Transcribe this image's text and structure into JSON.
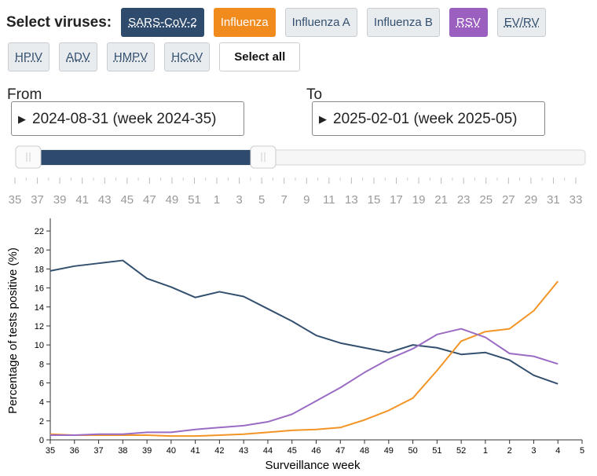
{
  "virus_selector": {
    "label": "Select viruses:",
    "buttons": [
      {
        "label": "SARS-CoV-2",
        "selected": true,
        "color": "#2e4a6d",
        "abbr": true
      },
      {
        "label": "Influenza",
        "selected": true,
        "color": "#f28b1e",
        "abbr": false
      },
      {
        "label": "Influenza A",
        "selected": false,
        "abbr": false
      },
      {
        "label": "Influenza B",
        "selected": false,
        "abbr": false
      },
      {
        "label": "RSV",
        "selected": true,
        "color": "#9b5fc0",
        "abbr": true
      },
      {
        "label": "EV/RV",
        "selected": false,
        "abbr": true
      },
      {
        "label": "HPIV",
        "selected": false,
        "abbr": true
      },
      {
        "label": "ADV",
        "selected": false,
        "abbr": true
      },
      {
        "label": "HMPV",
        "selected": false,
        "abbr": true
      },
      {
        "label": "HCoV",
        "selected": false,
        "abbr": true
      },
      {
        "label": "Select all",
        "selected": false,
        "abbr": false,
        "plain": true
      }
    ]
  },
  "range": {
    "from_label": "From",
    "from_value": "2024-08-31 (week 2024-35)",
    "to_label": "To",
    "to_value": "2025-02-01 (week 2025-05)",
    "slider_ticks": [
      "35",
      "37",
      "39",
      "41",
      "43",
      "45",
      "47",
      "49",
      "51",
      "1",
      "3",
      "5",
      "7",
      "9",
      "11",
      "13",
      "15",
      "17",
      "19",
      "21",
      "23",
      "25",
      "27",
      "29",
      "31",
      "33"
    ]
  },
  "chart_data": {
    "type": "line",
    "xlabel": "Surveillance week",
    "ylabel": "Percentage of tests positive (%)",
    "categories": [
      "35",
      "36",
      "37",
      "38",
      "39",
      "40",
      "41",
      "42",
      "43",
      "44",
      "45",
      "46",
      "47",
      "48",
      "49",
      "50",
      "51",
      "52",
      "1",
      "2",
      "3",
      "4",
      "5"
    ],
    "ylim": [
      0,
      23
    ],
    "yticks": [
      0,
      2,
      4,
      6,
      8,
      10,
      12,
      14,
      16,
      18,
      20,
      22
    ],
    "series": [
      {
        "name": "SARS-CoV-2",
        "color": "#34506f",
        "values": [
          17.8,
          18.3,
          18.6,
          18.9,
          17.0,
          16.1,
          15.0,
          15.6,
          15.1,
          13.8,
          12.5,
          11.0,
          10.2,
          9.7,
          9.2,
          10.0,
          9.7,
          9.0,
          9.2,
          8.4,
          6.8,
          5.9,
          null
        ]
      },
      {
        "name": "Influenza",
        "color": "#f39526",
        "values": [
          0.6,
          0.5,
          0.5,
          0.5,
          0.5,
          0.4,
          0.4,
          0.5,
          0.6,
          0.8,
          1.0,
          1.1,
          1.3,
          2.1,
          3.1,
          4.4,
          7.3,
          10.4,
          11.4,
          11.7,
          13.6,
          16.7,
          null
        ]
      },
      {
        "name": "RSV",
        "color": "#9a6cc4",
        "values": [
          0.5,
          0.5,
          0.6,
          0.6,
          0.8,
          0.8,
          1.1,
          1.3,
          1.5,
          1.9,
          2.7,
          4.1,
          5.5,
          7.1,
          8.5,
          9.6,
          11.1,
          11.7,
          10.8,
          9.1,
          8.8,
          8.0,
          null
        ]
      }
    ]
  }
}
